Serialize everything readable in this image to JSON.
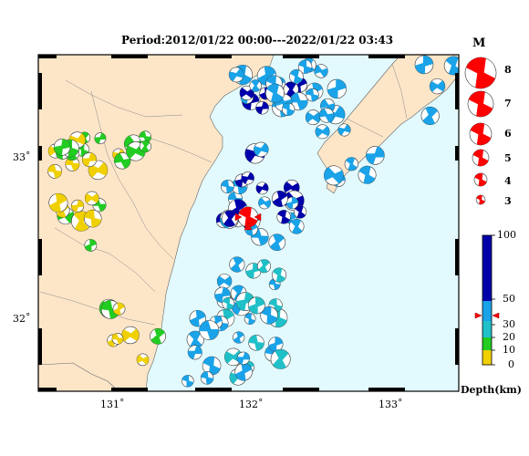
{
  "title": "Period:2012/01/22 00:00---2022/01/22 03:43",
  "x_ticks": [
    "131˚",
    "132˚",
    "133˚"
  ],
  "y_ticks": [
    "33˚",
    "32˚"
  ],
  "magnitude_legend": {
    "header": "M",
    "labels": [
      "8",
      "7",
      "6",
      "5",
      "4",
      "3"
    ]
  },
  "depth_legend": {
    "labels": [
      "100",
      "50",
      "30",
      "20",
      "10",
      "0"
    ],
    "unit": "Depth(km)",
    "colors": [
      "#0000aa",
      "#1aa3e8",
      "#20c0c8",
      "#22cc22",
      "#f0d000"
    ],
    "marker_value": 40
  },
  "colors": {
    "land": "#fde6c8",
    "sea": "#e2fafe",
    "border": "#000000",
    "highlight": "#ff0000"
  }
}
